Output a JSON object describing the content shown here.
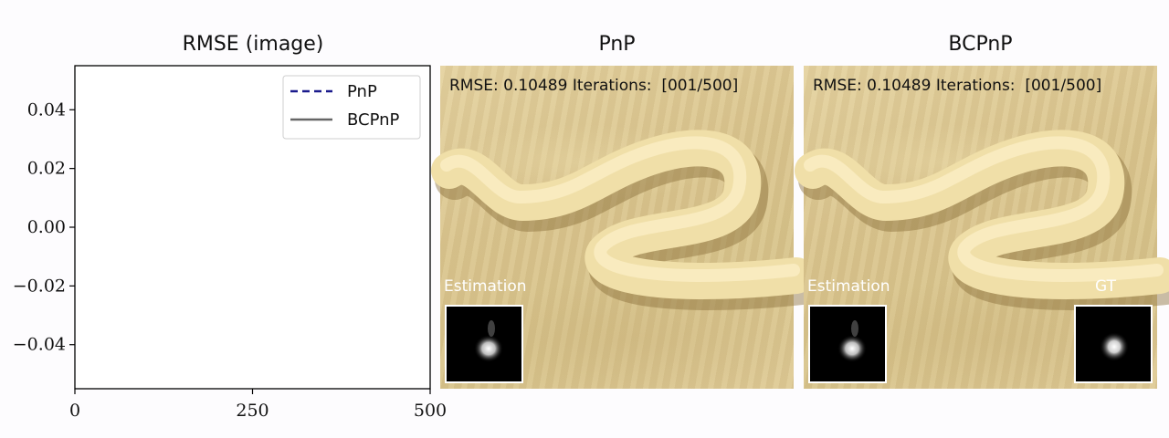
{
  "panels": {
    "plot_title": "RMSE (image)",
    "pnp_title": "PnP",
    "bcpnp_title": "BCPnP"
  },
  "pnp_panel": {
    "info": "RMSE: 0.10489 Iterations:  [001/500]",
    "estimation_label": "Estimation"
  },
  "bcpnp_panel": {
    "info": "RMSE: 0.10489 Iterations:  [001/500]",
    "estimation_label": "Estimation",
    "gt_label": "GT"
  },
  "chart_data": {
    "type": "line",
    "title": "RMSE (image)",
    "xlabel": "",
    "ylabel": "",
    "xlim": [
      0,
      500
    ],
    "ylim": [
      -0.055,
      0.055
    ],
    "x_ticks": [
      0,
      250,
      500
    ],
    "x_tick_labels": [
      "0",
      "250",
      "500"
    ],
    "y_ticks": [
      0.04,
      0.02,
      0.0,
      -0.02,
      -0.04
    ],
    "y_tick_labels": [
      "0.04",
      "0.02",
      "0.00",
      "−0.02",
      "−0.04"
    ],
    "grid": false,
    "legend_position": "top-right",
    "series": [
      {
        "name": "PnP",
        "x": [],
        "values": [],
        "color": "#1a1a8c",
        "style": "dashed"
      },
      {
        "name": "BCPnP",
        "x": [],
        "values": [],
        "color": "#666666",
        "style": "solid"
      }
    ]
  }
}
